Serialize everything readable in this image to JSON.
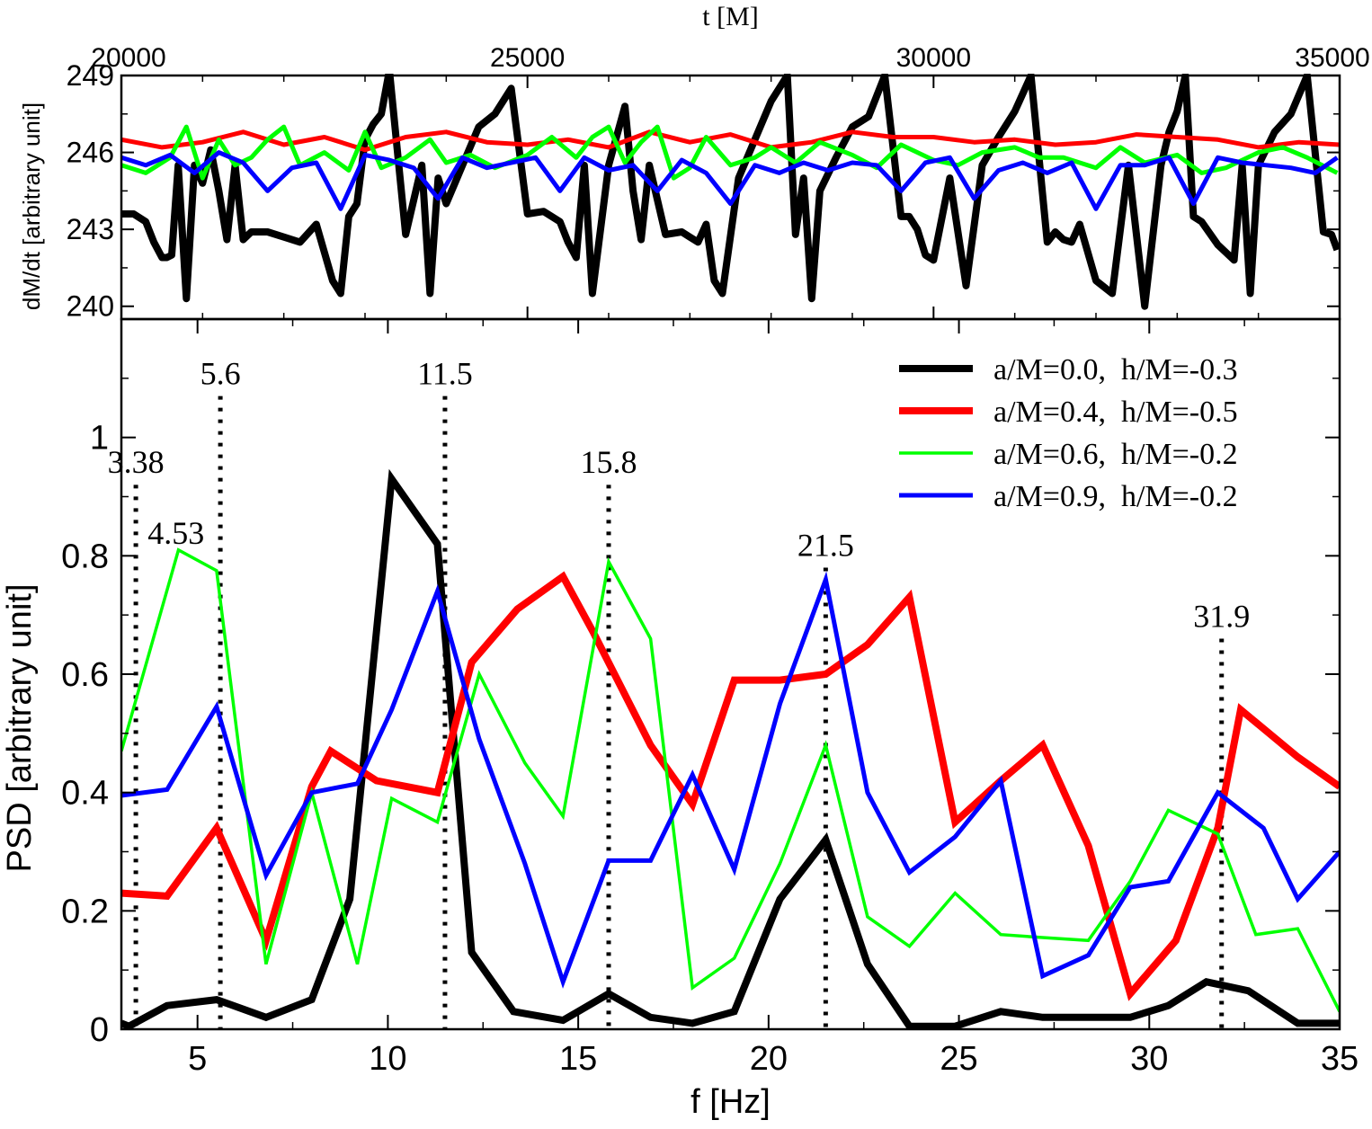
{
  "chart_data": [
    {
      "type": "line",
      "panel": "top",
      "title": "",
      "xlabel": "t [M]",
      "ylabel": "dM/dt [arbitrary unit]",
      "xlim": [
        20000,
        35000
      ],
      "ylim": [
        239.5,
        249
      ],
      "x_ticks": [
        20000,
        25000,
        30000,
        35000
      ],
      "x_tick_labels": [
        "20000",
        "25000",
        "30000",
        "35000"
      ],
      "y_ticks": [
        240,
        243,
        246,
        249
      ],
      "y_tick_labels": [
        "240",
        "243",
        "246",
        "249"
      ],
      "x_axis_position": "top",
      "series": [
        {
          "name": "a/M=0.0, h/M=-0.3",
          "color": "#000000",
          "x": [
            20000,
            20150,
            20300,
            20400,
            20500,
            20560,
            20620,
            20700,
            20800,
            20900,
            21000,
            21100,
            21200,
            21300,
            21400,
            21500,
            21600,
            21800,
            22000,
            22200,
            22400,
            22600,
            22700,
            22800,
            22900,
            23000,
            23100,
            23200,
            23300,
            23500,
            23700,
            23800,
            23900,
            24000,
            24200,
            24400,
            24600,
            24800,
            25000,
            25200,
            25400,
            25500,
            25600,
            25700,
            25800,
            26000,
            26200,
            26300,
            26400,
            26500,
            26700,
            26900,
            27000,
            27100,
            27200,
            27300,
            27400,
            27600,
            27800,
            28000,
            28200,
            28300,
            28400,
            28500,
            28600,
            28800,
            29000,
            29200,
            29400,
            29600,
            29700,
            29800,
            29900,
            30000,
            30200,
            30400,
            30600,
            30800,
            31000,
            31200,
            31400,
            31500,
            31600,
            31700,
            31800,
            32000,
            32200,
            32400,
            32600,
            32800,
            32900,
            33000,
            33100,
            33200,
            33300,
            33500,
            33700,
            33800,
            33900,
            34000,
            34200,
            34400,
            34600,
            34800,
            34900,
            34970
          ],
          "y": [
            243.6,
            243.6,
            243.3,
            242.5,
            241.9,
            241.9,
            242.0,
            245.5,
            240.3,
            245.5,
            244.8,
            246.1,
            244.5,
            242.6,
            245.5,
            242.6,
            242.9,
            242.9,
            242.7,
            242.5,
            243.2,
            241.0,
            240.5,
            243.5,
            244.0,
            246.5,
            247.1,
            247.5,
            249.2,
            242.8,
            245.5,
            240.5,
            245.0,
            244.0,
            245.5,
            247.0,
            247.5,
            248.5,
            243.6,
            243.7,
            243.3,
            242.5,
            241.9,
            245.5,
            240.5,
            245.5,
            247.8,
            244.5,
            242.6,
            245.5,
            242.8,
            242.9,
            242.7,
            242.5,
            243.2,
            241.0,
            240.5,
            245.0,
            246.5,
            248.0,
            249.0,
            242.8,
            245.0,
            240.3,
            244.5,
            245.8,
            247.0,
            247.4,
            249.0,
            243.5,
            243.5,
            243.0,
            242.0,
            241.8,
            245.0,
            240.8,
            245.5,
            246.6,
            247.6,
            249.0,
            242.5,
            242.9,
            242.6,
            242.5,
            243.2,
            241.0,
            240.5,
            245.5,
            240.0,
            245.5,
            246.8,
            247.6,
            249.0,
            243.5,
            243.3,
            242.4,
            241.8,
            245.5,
            240.5,
            245.5,
            246.8,
            247.5,
            249.0,
            242.9,
            242.8,
            242.2
          ],
          "style": "thick"
        },
        {
          "name": "a/M=0.4, h/M=-0.5",
          "color": "#ff0000",
          "x": [
            20000,
            20500,
            21000,
            21500,
            22000,
            22500,
            23000,
            23500,
            24000,
            24500,
            25000,
            25500,
            26000,
            26500,
            27000,
            27500,
            28000,
            28500,
            29000,
            29500,
            30000,
            30500,
            31000,
            31500,
            32000,
            32500,
            33000,
            33500,
            34000,
            34500,
            35000
          ],
          "y": [
            246.5,
            246.2,
            246.4,
            246.8,
            246.3,
            246.6,
            246.1,
            246.6,
            246.8,
            246.4,
            246.3,
            246.5,
            246.2,
            246.8,
            246.4,
            246.7,
            246.2,
            246.4,
            246.8,
            246.6,
            246.6,
            246.4,
            246.5,
            246.3,
            246.4,
            246.7,
            246.6,
            246.5,
            246.2,
            246.4,
            246.3
          ],
          "style": "medium"
        },
        {
          "name": "a/M=0.6, h/M=-0.2",
          "color": "#00ff00",
          "x": [
            20000,
            20300,
            20600,
            20800,
            21000,
            21200,
            21400,
            21600,
            21800,
            22000,
            22200,
            22500,
            22800,
            23000,
            23200,
            23500,
            23800,
            24000,
            24300,
            24600,
            25000,
            25300,
            25600,
            25800,
            26000,
            26200,
            26400,
            26600,
            26800,
            27000,
            27200,
            27500,
            27800,
            28000,
            28300,
            28600,
            29000,
            29300,
            29600,
            30000,
            30300,
            30600,
            31000,
            31300,
            31600,
            32000,
            32300,
            32600,
            33000,
            33300,
            33600,
            34000,
            34300,
            34600,
            34970
          ],
          "y": [
            245.5,
            245.2,
            245.8,
            247.0,
            245.0,
            246.5,
            245.5,
            245.8,
            246.5,
            247.0,
            245.5,
            246.0,
            245.3,
            246.8,
            245.4,
            245.8,
            246.5,
            245.6,
            245.9,
            245.4,
            245.9,
            246.6,
            245.8,
            246.6,
            247.0,
            245.6,
            246.4,
            247.0,
            245.0,
            245.4,
            246.6,
            245.5,
            245.8,
            246.2,
            245.6,
            246.4,
            245.9,
            245.4,
            246.3,
            245.7,
            245.5,
            246.0,
            246.2,
            245.8,
            245.8,
            245.4,
            246.2,
            245.6,
            245.9,
            245.2,
            245.4,
            246.0,
            246.2,
            245.8,
            245.2
          ],
          "style": "medium"
        },
        {
          "name": "a/M=0.9, h/M=-0.2",
          "color": "#0000ff",
          "x": [
            20000,
            20300,
            20600,
            20900,
            21200,
            21500,
            21800,
            22100,
            22400,
            22700,
            23000,
            23300,
            23600,
            23900,
            24200,
            24500,
            24800,
            25100,
            25400,
            25700,
            26000,
            26300,
            26600,
            26900,
            27200,
            27500,
            27800,
            28100,
            28400,
            28700,
            29000,
            29300,
            29600,
            29900,
            30200,
            30500,
            30800,
            31100,
            31400,
            31700,
            32000,
            32300,
            32600,
            32900,
            33200,
            33500,
            33800,
            34100,
            34400,
            34700,
            34970
          ],
          "y": [
            245.8,
            245.5,
            245.9,
            245.2,
            246.0,
            245.6,
            244.5,
            245.4,
            245.6,
            243.8,
            245.9,
            245.7,
            245.4,
            244.2,
            245.8,
            245.4,
            245.6,
            245.8,
            244.5,
            245.8,
            245.3,
            245.5,
            244.5,
            245.7,
            245.2,
            244.0,
            245.5,
            245.2,
            245.6,
            245.3,
            245.6,
            245.5,
            244.5,
            245.6,
            245.8,
            244.2,
            245.3,
            245.6,
            245.2,
            245.6,
            243.8,
            245.5,
            245.5,
            245.8,
            244.0,
            245.8,
            245.6,
            245.5,
            245.4,
            245.2,
            245.8
          ],
          "style": "medium"
        }
      ]
    },
    {
      "type": "line",
      "panel": "bottom",
      "title": "",
      "xlabel": "f [Hz]",
      "ylabel": "PSD [arbitrary unit]",
      "xlim": [
        3,
        35
      ],
      "ylim": [
        0,
        1.2
      ],
      "x_ticks": [
        5,
        10,
        15,
        20,
        25,
        30,
        35
      ],
      "x_tick_labels": [
        "5",
        "10",
        "15",
        "20",
        "25",
        "30",
        "35"
      ],
      "y_ticks": [
        0,
        0.2,
        0.4,
        0.6,
        0.8,
        1
      ],
      "y_tick_labels": [
        "0",
        "0.2",
        "0.4",
        "0.6",
        "0.8",
        "1"
      ],
      "legend_position": "top-right",
      "x": [
        3.0,
        4.2,
        5.5,
        6.8,
        8.0,
        8.5,
        9.2,
        10.2,
        11.3,
        12.2,
        13.4,
        14.6,
        15.8,
        16.9,
        18.0,
        19.1,
        20.3,
        21.5,
        22.6,
        23.7,
        24.9,
        26.1,
        27.2,
        28.4,
        29.5,
        30.5,
        31.8,
        32.8,
        33.9,
        35.0
      ],
      "series": [
        {
          "name": "a/M=0.0,  h/M=-0.3",
          "color": "#000000",
          "style": "thick",
          "x": [
            3.0,
            3.2,
            4.2,
            5.5,
            6.8,
            8.0,
            9.0,
            10.1,
            11.3,
            12.2,
            13.3,
            14.6,
            15.8,
            16.9,
            18.0,
            19.1,
            20.3,
            21.5,
            22.6,
            23.7,
            24.9,
            26.1,
            27.2,
            28.4,
            29.5,
            30.5,
            31.5,
            32.6,
            33.9,
            35.0
          ],
          "values": [
            0.01,
            0.005,
            0.04,
            0.05,
            0.02,
            0.05,
            0.22,
            0.93,
            0.82,
            0.13,
            0.03,
            0.015,
            0.06,
            0.02,
            0.01,
            0.03,
            0.22,
            0.32,
            0.11,
            0.005,
            0.005,
            0.03,
            0.02,
            0.02,
            0.02,
            0.04,
            0.08,
            0.065,
            0.01,
            0.01
          ]
        },
        {
          "name": "a/M=0.4,  h/M=-0.5",
          "color": "#ff0000",
          "style": "thick",
          "x": [
            3.0,
            4.2,
            5.5,
            6.8,
            8.0,
            8.5,
            9.7,
            11.3,
            12.2,
            13.4,
            14.6,
            15.4,
            16.9,
            18.0,
            19.1,
            20.3,
            21.5,
            22.6,
            23.7,
            24.9,
            26.1,
            27.2,
            28.4,
            29.5,
            30.7,
            31.8,
            32.4,
            33.9,
            35.0
          ],
          "values": [
            0.23,
            0.225,
            0.34,
            0.15,
            0.41,
            0.47,
            0.42,
            0.4,
            0.62,
            0.71,
            0.765,
            0.67,
            0.48,
            0.38,
            0.59,
            0.59,
            0.6,
            0.65,
            0.73,
            0.35,
            0.42,
            0.48,
            0.31,
            0.06,
            0.15,
            0.34,
            0.54,
            0.46,
            0.41
          ]
        },
        {
          "name": "a/M=0.6,  h/M=-0.2",
          "color": "#00ff00",
          "style": "thin",
          "x": [
            3.0,
            4.5,
            5.5,
            6.8,
            8.0,
            9.2,
            10.1,
            11.3,
            12.4,
            13.6,
            14.6,
            15.8,
            16.9,
            18.0,
            19.1,
            20.3,
            21.5,
            22.6,
            23.7,
            24.9,
            26.1,
            27.2,
            28.4,
            29.5,
            30.5,
            31.8,
            32.8,
            33.9,
            35.0
          ],
          "values": [
            0.47,
            0.81,
            0.775,
            0.11,
            0.4,
            0.11,
            0.39,
            0.35,
            0.6,
            0.45,
            0.36,
            0.79,
            0.66,
            0.07,
            0.12,
            0.28,
            0.48,
            0.19,
            0.14,
            0.23,
            0.16,
            0.155,
            0.15,
            0.25,
            0.37,
            0.33,
            0.16,
            0.17,
            0.03
          ]
        },
        {
          "name": "a/M=0.9,  h/M=-0.2",
          "color": "#0000ff",
          "style": "medium",
          "x": [
            3.0,
            4.2,
            5.5,
            6.8,
            8.0,
            9.2,
            10.1,
            11.3,
            12.4,
            13.6,
            14.6,
            15.8,
            16.9,
            18.0,
            19.1,
            20.3,
            21.5,
            22.6,
            23.7,
            24.9,
            26.1,
            27.2,
            28.4,
            29.5,
            30.5,
            31.8,
            33.0,
            33.9,
            35.0
          ],
          "values": [
            0.395,
            0.405,
            0.545,
            0.26,
            0.4,
            0.415,
            0.54,
            0.74,
            0.49,
            0.28,
            0.08,
            0.285,
            0.285,
            0.43,
            0.27,
            0.55,
            0.76,
            0.4,
            0.265,
            0.325,
            0.42,
            0.09,
            0.125,
            0.24,
            0.25,
            0.4,
            0.34,
            0.22,
            0.3
          ]
        }
      ],
      "annotations": [
        {
          "x": 3.38,
          "label": "3.38"
        },
        {
          "x": 5.6,
          "label": "5.6"
        },
        {
          "x": 4.53,
          "label": "4.53"
        },
        {
          "x": 11.5,
          "label": "11.5"
        },
        {
          "x": 15.8,
          "label": "15.8"
        },
        {
          "x": 21.5,
          "label": "21.5"
        },
        {
          "x": 31.9,
          "label": "31.9"
        }
      ]
    }
  ]
}
